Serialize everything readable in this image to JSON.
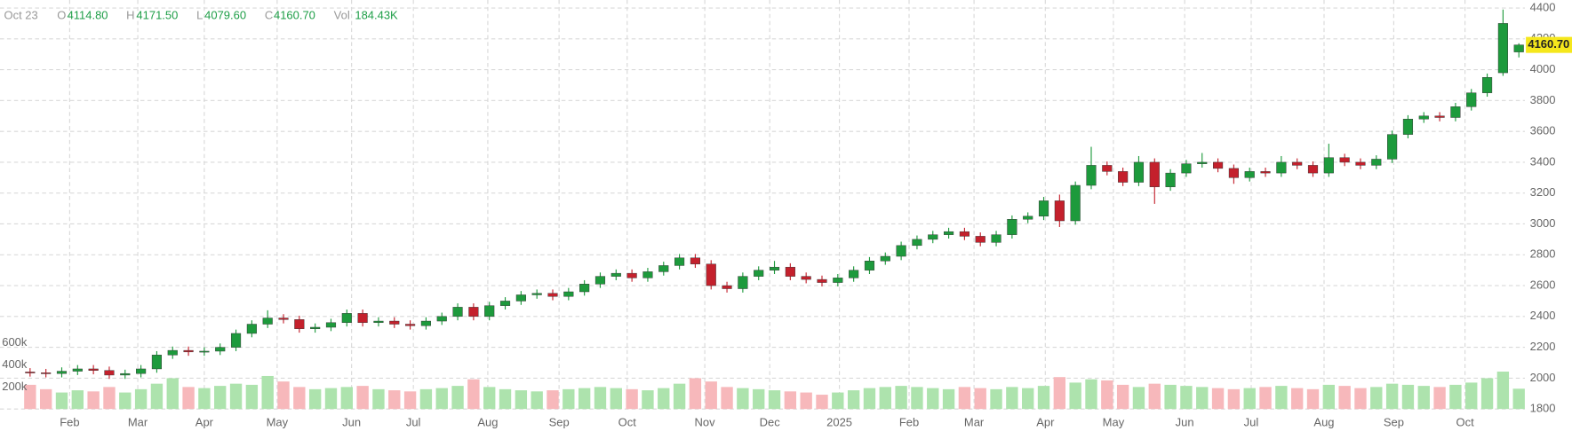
{
  "chart_data": {
    "type": "candlestick",
    "header": {
      "date": "Oct 23",
      "open_key": "O",
      "open_text": "4114.80",
      "high_key": "H",
      "high_text": "4171.50",
      "low_key": "L",
      "low_text": "4079.60",
      "close_key": "C",
      "close_text": "4160.70",
      "volume_key": "Vol",
      "volume_text": "184.43K"
    },
    "open": [
      2040,
      2035,
      2030,
      2045,
      2060,
      2050,
      2020,
      2030,
      2060,
      2150,
      2180,
      2170,
      2175,
      2200,
      2290,
      2350,
      2390,
      2380,
      2320,
      2330,
      2360,
      2420,
      2360,
      2370,
      2350,
      2340,
      2370,
      2400,
      2460,
      2400,
      2470,
      2500,
      2540,
      2550,
      2530,
      2560,
      2610,
      2660,
      2680,
      2650,
      2690,
      2730,
      2780,
      2740,
      2600,
      2580,
      2660,
      2700,
      2720,
      2660,
      2640,
      2620,
      2650,
      2700,
      2760,
      2790,
      2860,
      2900,
      2930,
      2950,
      2920,
      2880,
      2930,
      3030,
      3050,
      3150,
      3020,
      3250,
      3380,
      3340,
      3270,
      3400,
      3240,
      3330,
      3390,
      3400,
      3360,
      3300,
      3340,
      3330,
      3400,
      3380,
      3330,
      3430,
      3400,
      3380,
      3420,
      3580,
      3680,
      3700,
      3690,
      3760,
      3850,
      3980,
      4114.8
    ],
    "high": [
      2065,
      2060,
      2070,
      2085,
      2085,
      2075,
      2055,
      2085,
      2175,
      2205,
      2205,
      2200,
      2225,
      2315,
      2375,
      2440,
      2415,
      2405,
      2355,
      2385,
      2445,
      2445,
      2395,
      2395,
      2375,
      2395,
      2425,
      2485,
      2485,
      2495,
      2525,
      2565,
      2575,
      2575,
      2585,
      2635,
      2685,
      2705,
      2705,
      2715,
      2755,
      2805,
      2805,
      2765,
      2625,
      2685,
      2725,
      2760,
      2745,
      2685,
      2665,
      2675,
      2725,
      2785,
      2815,
      2885,
      2925,
      2955,
      2975,
      2975,
      2945,
      2955,
      3055,
      3075,
      3175,
      3190,
      3275,
      3500,
      3405,
      3365,
      3440,
      3425,
      3355,
      3415,
      3460,
      3425,
      3385,
      3365,
      3365,
      3440,
      3425,
      3405,
      3520,
      3455,
      3425,
      3445,
      3605,
      3705,
      3725,
      3725,
      3785,
      3875,
      3975,
      4390,
      4171.5
    ],
    "low": [
      2010,
      2005,
      2005,
      2020,
      2025,
      1995,
      1995,
      2005,
      2035,
      2125,
      2145,
      2145,
      2150,
      2175,
      2265,
      2325,
      2355,
      2295,
      2295,
      2305,
      2335,
      2335,
      2335,
      2325,
      2315,
      2315,
      2345,
      2375,
      2375,
      2375,
      2445,
      2475,
      2515,
      2505,
      2505,
      2535,
      2585,
      2635,
      2625,
      2625,
      2665,
      2705,
      2715,
      2575,
      2555,
      2555,
      2635,
      2675,
      2635,
      2615,
      2595,
      2595,
      2625,
      2675,
      2735,
      2765,
      2835,
      2875,
      2905,
      2895,
      2855,
      2855,
      2905,
      3005,
      3025,
      2980,
      2995,
      3225,
      3315,
      3245,
      3245,
      3130,
      3215,
      3305,
      3365,
      3335,
      3260,
      3275,
      3305,
      3305,
      3355,
      3305,
      3305,
      3375,
      3355,
      3355,
      3395,
      3555,
      3655,
      3665,
      3665,
      3735,
      3825,
      3960,
      4079.6
    ],
    "close": [
      2035,
      2030,
      2045,
      2060,
      2050,
      2020,
      2030,
      2060,
      2150,
      2180,
      2170,
      2175,
      2200,
      2290,
      2350,
      2390,
      2380,
      2320,
      2330,
      2360,
      2420,
      2360,
      2370,
      2350,
      2340,
      2370,
      2400,
      2460,
      2400,
      2470,
      2500,
      2540,
      2550,
      2530,
      2560,
      2610,
      2660,
      2680,
      2650,
      2690,
      2730,
      2780,
      2740,
      2600,
      2580,
      2660,
      2700,
      2720,
      2660,
      2640,
      2620,
      2650,
      2700,
      2760,
      2790,
      2860,
      2900,
      2930,
      2950,
      2920,
      2880,
      2930,
      3030,
      3050,
      3150,
      3020,
      3250,
      3380,
      3340,
      3270,
      3400,
      3240,
      3330,
      3390,
      3400,
      3360,
      3300,
      3340,
      3330,
      3400,
      3380,
      3330,
      3430,
      3400,
      3380,
      3420,
      3580,
      3680,
      3700,
      3690,
      3760,
      3850,
      3950,
      4300,
      4160.7
    ],
    "volume": [
      220000,
      180000,
      150000,
      170000,
      160000,
      200000,
      150000,
      180000,
      230000,
      280000,
      200000,
      190000,
      210000,
      230000,
      220000,
      300000,
      250000,
      200000,
      180000,
      190000,
      200000,
      210000,
      180000,
      170000,
      160000,
      180000,
      190000,
      210000,
      270000,
      200000,
      180000,
      170000,
      160000,
      170000,
      180000,
      190000,
      200000,
      190000,
      180000,
      170000,
      190000,
      230000,
      280000,
      250000,
      200000,
      190000,
      180000,
      170000,
      160000,
      150000,
      130000,
      150000,
      170000,
      190000,
      200000,
      210000,
      200000,
      190000,
      180000,
      200000,
      190000,
      180000,
      200000,
      190000,
      210000,
      290000,
      240000,
      270000,
      260000,
      220000,
      200000,
      230000,
      220000,
      210000,
      200000,
      190000,
      180000,
      190000,
      200000,
      210000,
      190000,
      180000,
      220000,
      210000,
      190000,
      200000,
      230000,
      220000,
      210000,
      200000,
      220000,
      240000,
      280000,
      340000,
      184430
    ],
    "last_price_label": "4160.70",
    "xlim": [
      0,
      94
    ],
    "xticks": [
      {
        "value": 2.5,
        "label": "Feb"
      },
      {
        "value": 6.8,
        "label": "Mar"
      },
      {
        "value": 11.0,
        "label": "Apr"
      },
      {
        "value": 15.6,
        "label": "May"
      },
      {
        "value": 20.3,
        "label": "Jun"
      },
      {
        "value": 24.2,
        "label": "Jul"
      },
      {
        "value": 28.9,
        "label": "Aug"
      },
      {
        "value": 33.4,
        "label": "Sep"
      },
      {
        "value": 37.7,
        "label": "Oct"
      },
      {
        "value": 42.6,
        "label": "Nov"
      },
      {
        "value": 46.7,
        "label": "Dec"
      },
      {
        "value": 51.1,
        "label": "2025"
      },
      {
        "value": 55.5,
        "label": "Feb"
      },
      {
        "value": 59.6,
        "label": "Mar"
      },
      {
        "value": 64.1,
        "label": "Apr"
      },
      {
        "value": 68.4,
        "label": "May"
      },
      {
        "value": 72.9,
        "label": "Jun"
      },
      {
        "value": 77.1,
        "label": "Jul"
      },
      {
        "value": 81.7,
        "label": "Aug"
      },
      {
        "value": 86.1,
        "label": "Sep"
      },
      {
        "value": 90.6,
        "label": "Oct"
      }
    ],
    "ylim": [
      1800,
      4400
    ],
    "yticks": [
      1800,
      2000,
      2200,
      2400,
      2600,
      2800,
      3000,
      3200,
      3400,
      3600,
      3800,
      4000,
      4200,
      4400
    ],
    "volume_ylim": [
      0,
      600000
    ],
    "volume_ticks": [
      {
        "value": 200000,
        "label": "200k"
      },
      {
        "value": 400000,
        "label": "400k"
      },
      {
        "value": 600000,
        "label": "600k"
      }
    ],
    "grid": true,
    "up_color": "#1d9a3c",
    "down_color": "#c4202c",
    "volume_up_color": "#ade3ad",
    "volume_down_color": "#f7b8bb",
    "last_price_color": "#f5e71c"
  }
}
